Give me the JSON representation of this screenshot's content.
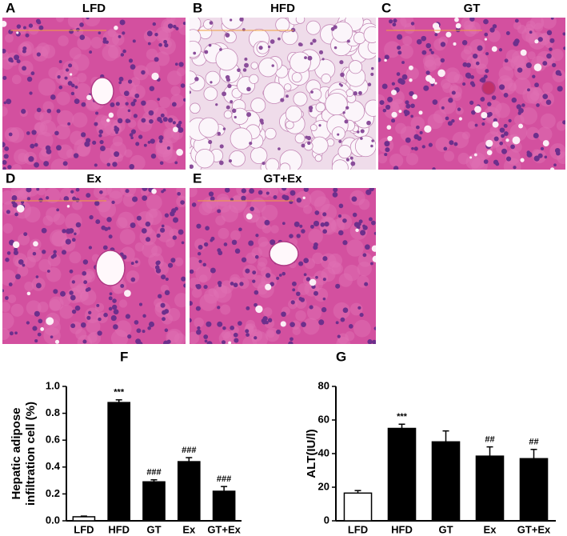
{
  "panels": [
    {
      "letter": "A",
      "title": "LFD"
    },
    {
      "letter": "B",
      "title": "HFD"
    },
    {
      "letter": "C",
      "title": "GT"
    },
    {
      "letter": "D",
      "title": "Ex"
    },
    {
      "letter": "E",
      "title": "GT+Ex"
    }
  ],
  "chart_data": [
    {
      "type": "bar",
      "title": "F",
      "ylabel": [
        "Hepatic adipose",
        "infiltration cell  (%)"
      ],
      "categories": [
        "LFD",
        "HFD",
        "GT",
        "Ex",
        "GT+Ex"
      ],
      "values": [
        0.03,
        0.88,
        0.29,
        0.44,
        0.22
      ],
      "errors": [
        0.005,
        0.02,
        0.015,
        0.03,
        0.035
      ],
      "annotations": [
        null,
        "***",
        "###",
        "###",
        "###"
      ],
      "colors": [
        "#ffffff",
        "#000000",
        "#000000",
        "#000000",
        "#000000"
      ],
      "ylim": [
        0,
        1.0
      ],
      "yticks": [
        {
          "value": 0,
          "label": "0.0"
        },
        0.2,
        0.4,
        0.6,
        0.8,
        {
          "value": 1.0,
          "label": "1.0"
        }
      ]
    },
    {
      "type": "bar",
      "title": "G",
      "ylabel": [
        "ALT(IU/l)"
      ],
      "categories": [
        "LFD",
        "HFD",
        "GT",
        "Ex",
        "GT+Ex"
      ],
      "values": [
        16.5,
        55,
        47,
        38.5,
        37
      ],
      "errors": [
        1.5,
        2.5,
        6.5,
        5.5,
        5.5
      ],
      "annotations": [
        null,
        "***",
        null,
        "##",
        "##"
      ],
      "colors": [
        "#ffffff",
        "#000000",
        "#000000",
        "#000000",
        "#000000"
      ],
      "ylim": [
        0,
        80
      ],
      "yticks": [
        0,
        20,
        40,
        60,
        80
      ]
    }
  ]
}
